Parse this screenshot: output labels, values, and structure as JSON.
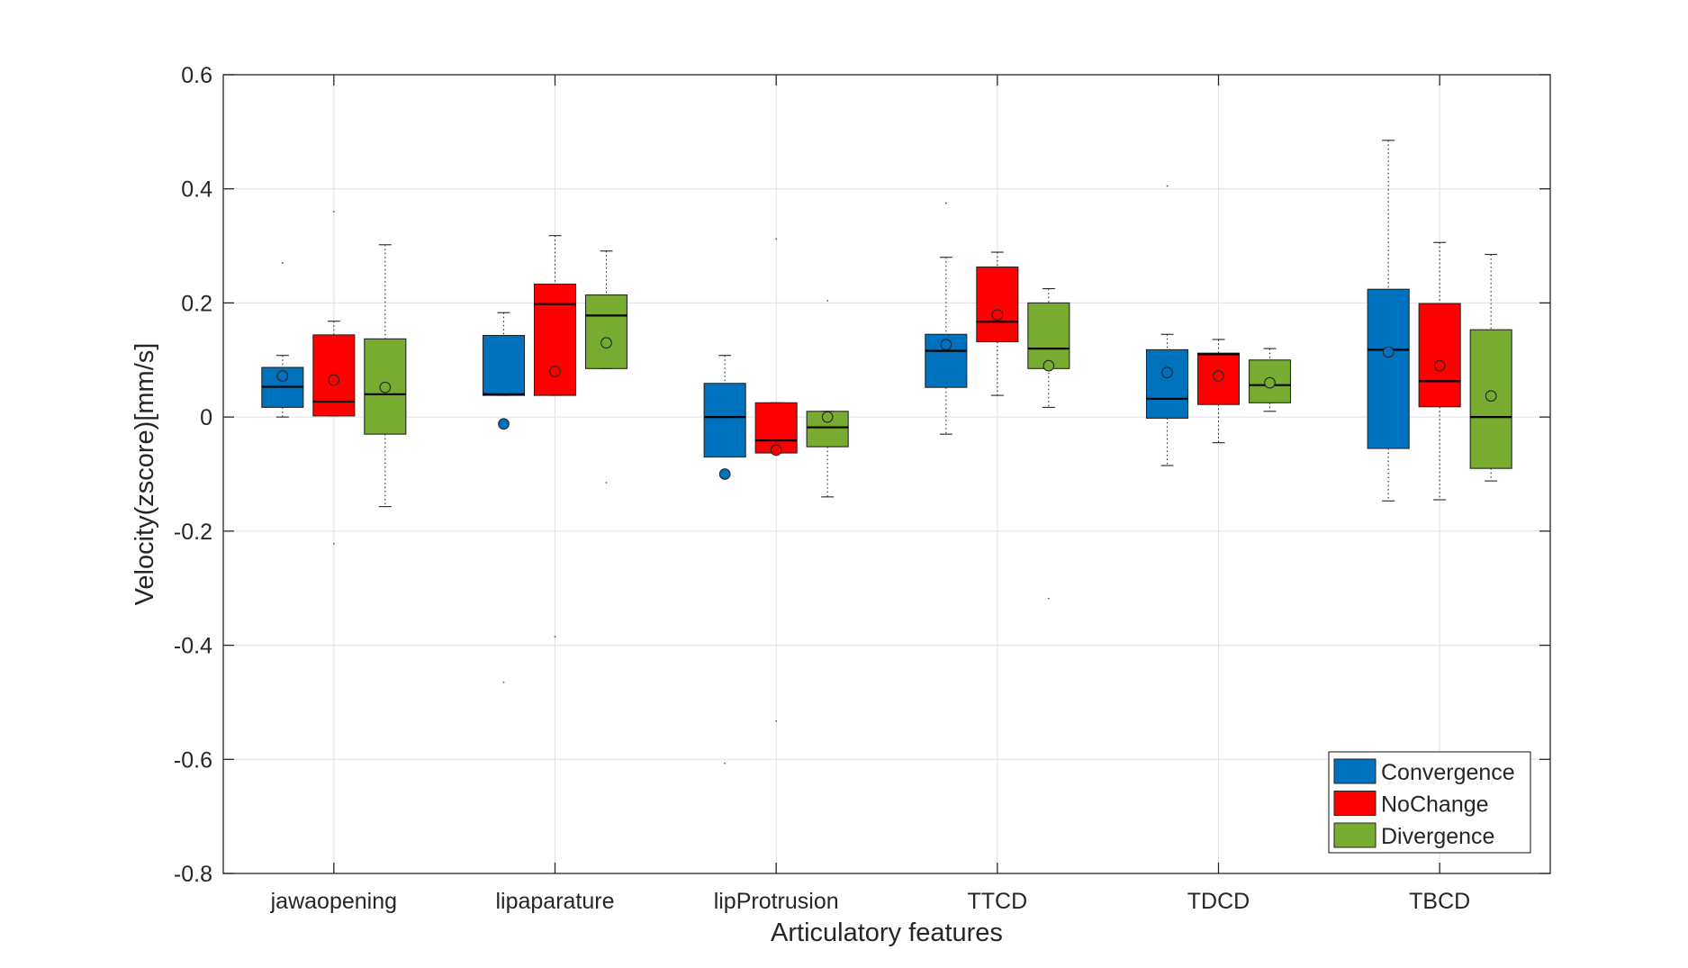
{
  "chart_data": {
    "type": "box",
    "xlabel": "Articulatory features",
    "ylabel": "Velocity(zscore)[mm/s]",
    "ylim": [
      -0.8,
      0.6
    ],
    "yticks": [
      -0.8,
      -0.6,
      -0.4,
      -0.2,
      0,
      0.2,
      0.4,
      0.6
    ],
    "ytick_labels": [
      "-0.8",
      "-0.6",
      "-0.4",
      "-0.2",
      "0",
      "0.2",
      "0.4",
      "0.6"
    ],
    "grid": true,
    "legend_position": "bottom-right",
    "categories": [
      "jawaopening",
      "lipaparature",
      "lipProtrusion",
      "TTCD",
      "TDCD",
      "TBCD"
    ],
    "series": [
      {
        "name": "Convergence",
        "color": "#0072BD",
        "boxes": [
          {
            "whisker_low": 0.0,
            "q1": 0.017,
            "median": 0.053,
            "q3": 0.087,
            "whisker_high": 0.108,
            "mean": 0.072,
            "outliers": [
              0.27
            ]
          },
          {
            "whisker_low": 0.038,
            "q1": 0.038,
            "median": 0.04,
            "q3": 0.143,
            "whisker_high": 0.183,
            "mean": -0.012,
            "outliers": [
              -0.465
            ]
          },
          {
            "whisker_low": -0.07,
            "q1": -0.07,
            "median": 0.0,
            "q3": 0.059,
            "whisker_high": 0.108,
            "mean": -0.1,
            "outliers": [
              -0.607
            ]
          },
          {
            "whisker_low": -0.03,
            "q1": 0.052,
            "median": 0.116,
            "q3": 0.145,
            "whisker_high": 0.28,
            "mean": 0.127,
            "outliers": [
              0.375
            ]
          },
          {
            "whisker_low": -0.085,
            "q1": -0.002,
            "median": 0.032,
            "q3": 0.118,
            "whisker_high": 0.145,
            "mean": 0.078,
            "outliers": [
              0.405
            ]
          },
          {
            "whisker_low": -0.147,
            "q1": -0.055,
            "median": 0.118,
            "q3": 0.224,
            "whisker_high": 0.485,
            "mean": 0.114,
            "outliers": []
          }
        ]
      },
      {
        "name": "NoChange",
        "color": "#FF0000",
        "boxes": [
          {
            "whisker_low": 0.002,
            "q1": 0.002,
            "median": 0.027,
            "q3": 0.144,
            "whisker_high": 0.168,
            "mean": 0.065,
            "outliers": [
              0.36,
              -0.222
            ]
          },
          {
            "whisker_low": 0.038,
            "q1": 0.038,
            "median": 0.198,
            "q3": 0.233,
            "whisker_high": 0.318,
            "mean": 0.08,
            "outliers": [
              -0.385
            ]
          },
          {
            "whisker_low": -0.063,
            "q1": -0.063,
            "median": -0.041,
            "q3": 0.025,
            "whisker_high": 0.025,
            "mean": -0.058,
            "outliers": [
              0.312,
              -0.533
            ]
          },
          {
            "whisker_low": 0.038,
            "q1": 0.132,
            "median": 0.167,
            "q3": 0.263,
            "whisker_high": 0.289,
            "mean": 0.179,
            "outliers": []
          },
          {
            "whisker_low": -0.045,
            "q1": 0.022,
            "median": 0.11,
            "q3": 0.112,
            "whisker_high": 0.136,
            "mean": 0.072,
            "outliers": []
          },
          {
            "whisker_low": -0.145,
            "q1": 0.018,
            "median": 0.063,
            "q3": 0.199,
            "whisker_high": 0.306,
            "mean": 0.09,
            "outliers": []
          }
        ]
      },
      {
        "name": "Divergence",
        "color": "#77AC30",
        "boxes": [
          {
            "whisker_low": -0.157,
            "q1": -0.03,
            "median": 0.04,
            "q3": 0.137,
            "whisker_high": 0.302,
            "mean": 0.052,
            "outliers": []
          },
          {
            "whisker_low": 0.085,
            "q1": 0.085,
            "median": 0.178,
            "q3": 0.214,
            "whisker_high": 0.291,
            "mean": 0.13,
            "outliers": [
              -0.115
            ]
          },
          {
            "whisker_low": -0.14,
            "q1": -0.052,
            "median": -0.018,
            "q3": 0.01,
            "whisker_high": 0.01,
            "mean": 0.0,
            "outliers": [
              0.204
            ]
          },
          {
            "whisker_low": 0.017,
            "q1": 0.085,
            "median": 0.12,
            "q3": 0.2,
            "whisker_high": 0.225,
            "mean": 0.09,
            "outliers": [
              -0.318
            ]
          },
          {
            "whisker_low": 0.01,
            "q1": 0.025,
            "median": 0.056,
            "q3": 0.1,
            "whisker_high": 0.12,
            "mean": 0.06,
            "outliers": []
          },
          {
            "whisker_low": -0.112,
            "q1": -0.09,
            "median": 0.0,
            "q3": 0.153,
            "whisker_high": 0.285,
            "mean": 0.037,
            "outliers": []
          }
        ]
      }
    ]
  }
}
